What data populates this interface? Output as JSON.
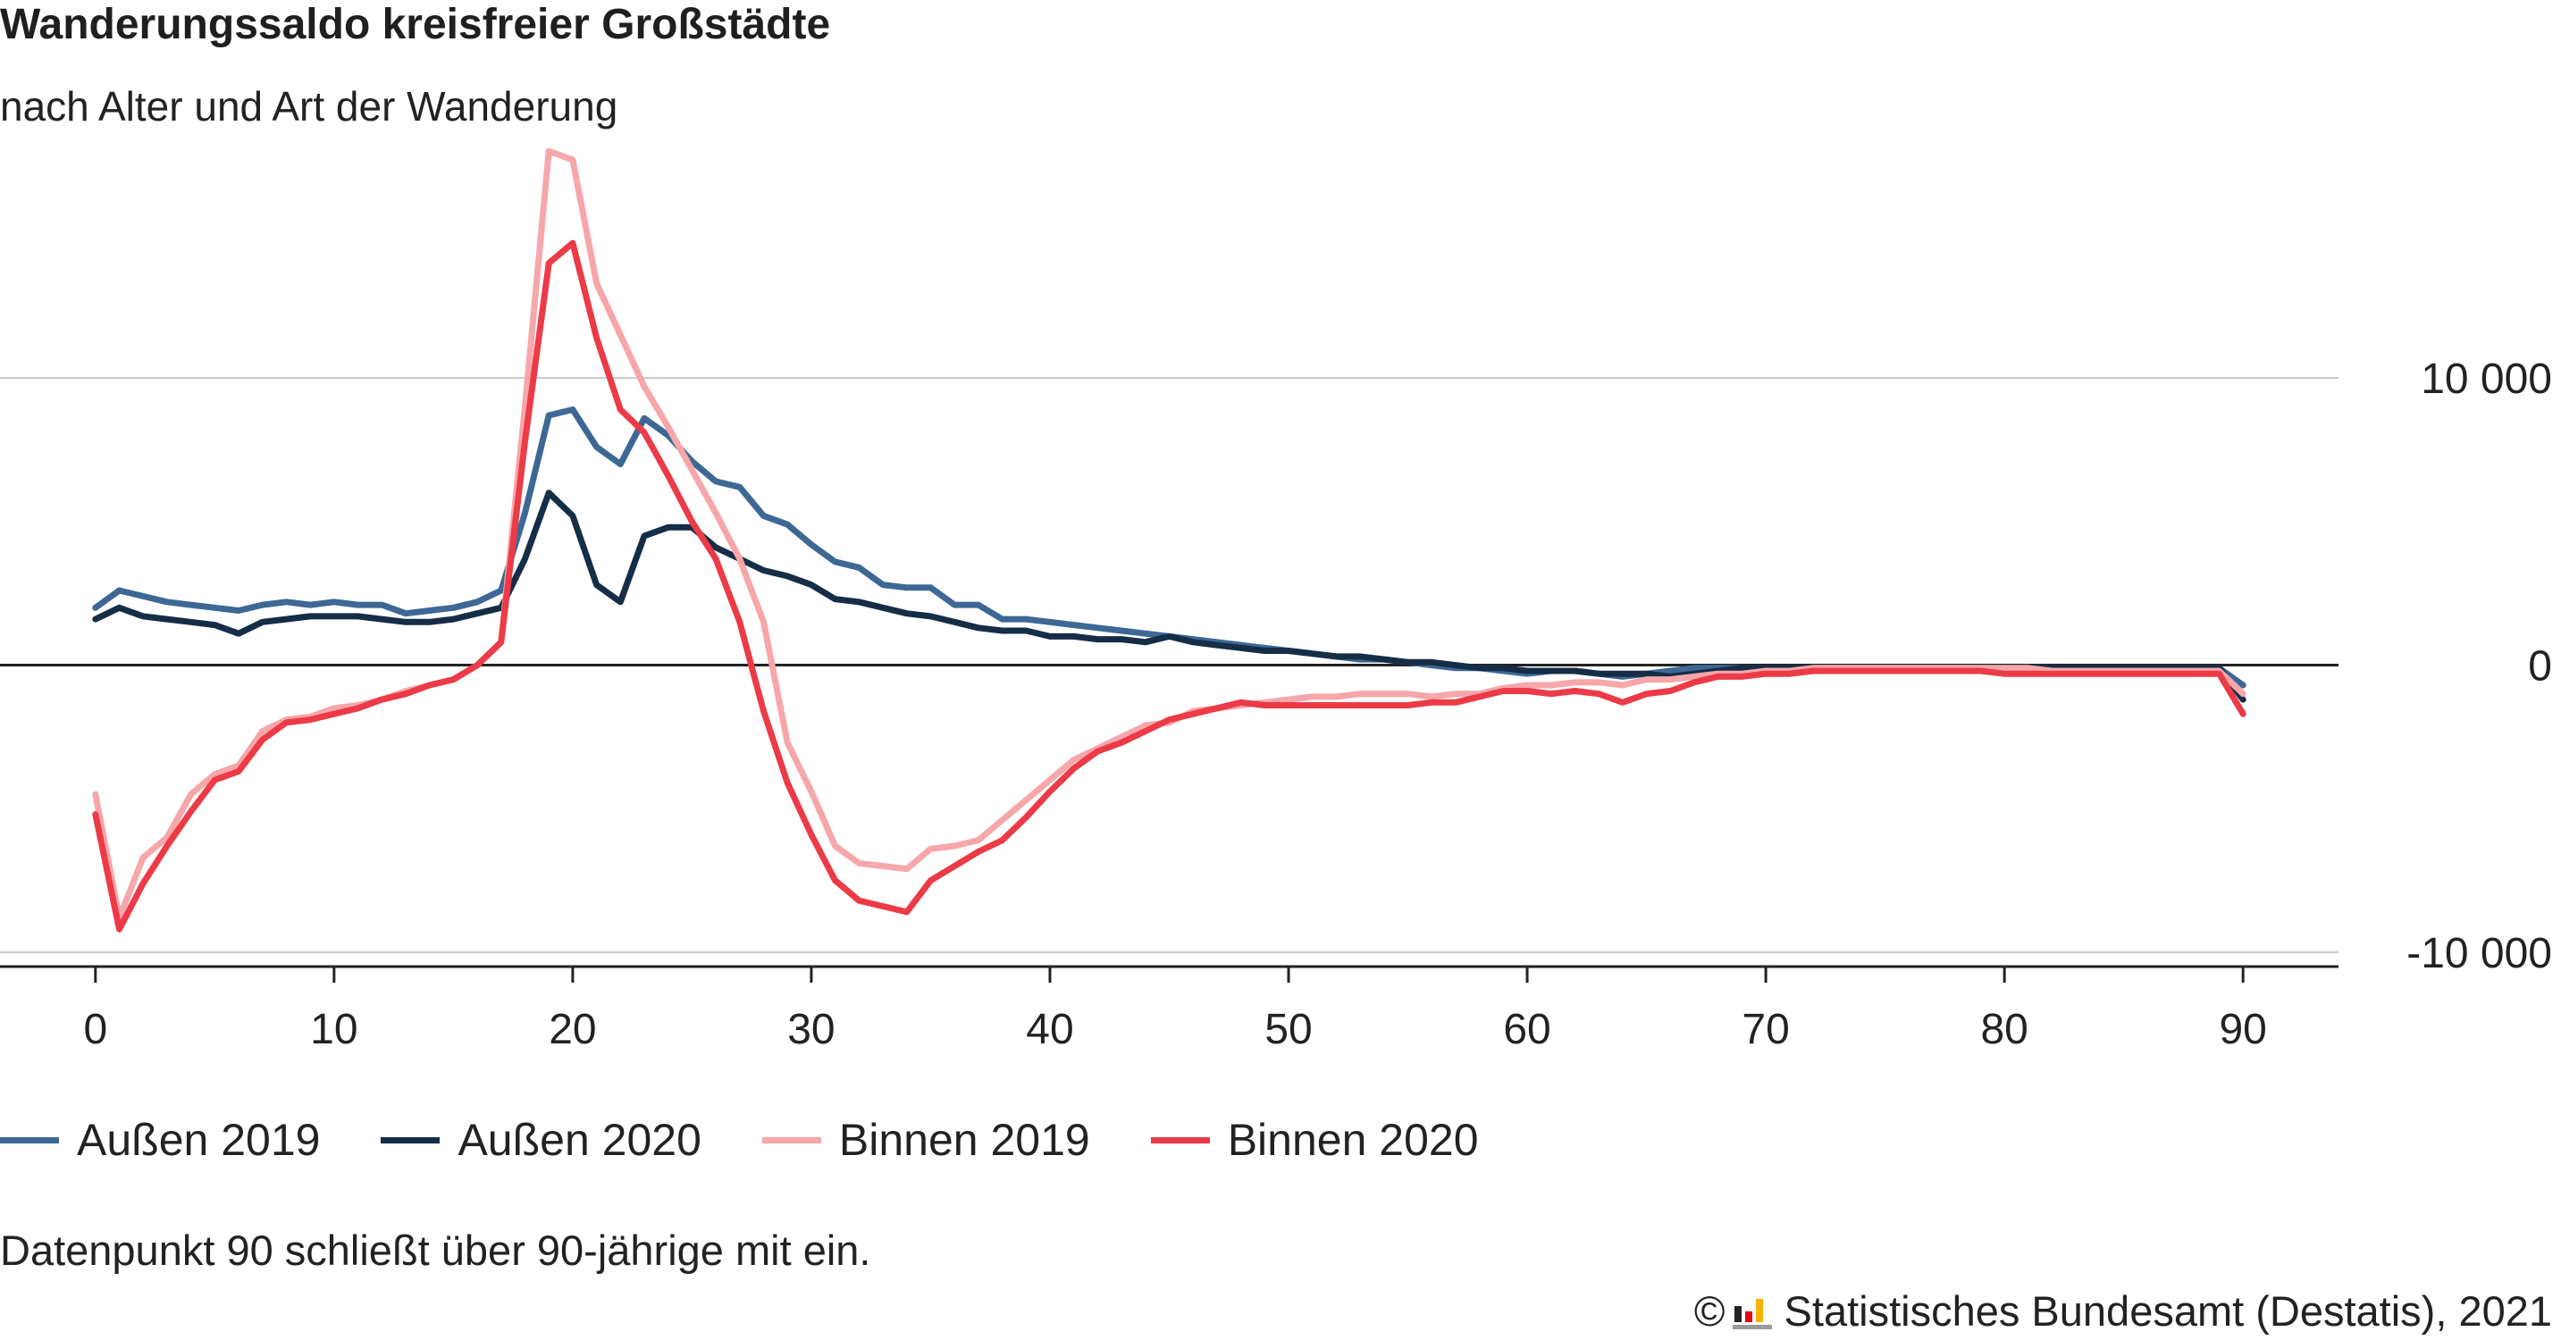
{
  "header": {
    "title": "Wanderungssaldo kreisfreier Großstädte",
    "subtitle": "nach Alter und Art der Wanderung"
  },
  "legend": {
    "items": [
      {
        "label": "Außen 2019",
        "color": "#3d6895"
      },
      {
        "label": "Außen 2020",
        "color": "#162d47"
      },
      {
        "label": "Binnen 2019",
        "color": "#f7a6a9"
      },
      {
        "label": "Binnen 2020",
        "color": "#ec3a47"
      }
    ]
  },
  "footnote": "Datenpunkt 90 schließt über 90-jährige mit ein.",
  "source": {
    "copyright": "©",
    "text": "Statistisches Bundesamt (Destatis), 2021",
    "logo_icon": "destatis-logo-icon"
  },
  "chart_data": {
    "type": "line",
    "x": [
      0,
      1,
      2,
      3,
      4,
      5,
      6,
      7,
      8,
      9,
      10,
      11,
      12,
      13,
      14,
      15,
      16,
      17,
      18,
      19,
      20,
      21,
      22,
      23,
      24,
      25,
      26,
      27,
      28,
      29,
      30,
      31,
      32,
      33,
      34,
      35,
      36,
      37,
      38,
      39,
      40,
      41,
      42,
      43,
      44,
      45,
      46,
      47,
      48,
      49,
      50,
      51,
      52,
      53,
      54,
      55,
      56,
      57,
      58,
      59,
      60,
      61,
      62,
      63,
      64,
      65,
      66,
      67,
      68,
      69,
      70,
      71,
      72,
      73,
      74,
      75,
      76,
      77,
      78,
      79,
      80,
      81,
      82,
      83,
      84,
      85,
      86,
      87,
      88,
      89,
      90
    ],
    "xlim": [
      -4,
      94
    ],
    "xticks": [
      "0",
      "10",
      "20",
      "30",
      "40",
      "50",
      "60",
      "70",
      "80",
      "90"
    ],
    "xtick_values": [
      0,
      10,
      20,
      30,
      40,
      50,
      60,
      70,
      80,
      90
    ],
    "ylim": [
      -10500,
      18500
    ],
    "yticks": [
      "10 000",
      "0",
      "-10 000"
    ],
    "ytick_values": [
      10000,
      0,
      -10000
    ],
    "grid": true,
    "legend_position": "bottom",
    "series": [
      {
        "name": "Außen 2019",
        "color": "#3d6895",
        "values": [
          2000,
          2600,
          2400,
          2200,
          2100,
          2000,
          1900,
          2100,
          2200,
          2100,
          2200,
          2100,
          2100,
          1800,
          1900,
          2000,
          2200,
          2600,
          5300,
          8700,
          8900,
          7600,
          7000,
          8600,
          8000,
          7100,
          6400,
          6200,
          5200,
          4900,
          4200,
          3600,
          3400,
          2800,
          2700,
          2700,
          2100,
          2100,
          1600,
          1600,
          1500,
          1400,
          1300,
          1200,
          1100,
          1000,
          900,
          800,
          700,
          600,
          500,
          400,
          300,
          200,
          200,
          100,
          0,
          -100,
          -100,
          -200,
          -300,
          -200,
          -200,
          -300,
          -400,
          -300,
          -200,
          -100,
          -100,
          -100,
          -100,
          -100,
          -100,
          -100,
          -100,
          -100,
          -100,
          -100,
          -100,
          -100,
          -100,
          -100,
          -100,
          -100,
          -100,
          -100,
          -100,
          -100,
          -100,
          -100,
          -700
        ]
      },
      {
        "name": "Außen 2020",
        "color": "#162d47",
        "values": [
          1600,
          2000,
          1700,
          1600,
          1500,
          1400,
          1100,
          1500,
          1600,
          1700,
          1700,
          1700,
          1600,
          1500,
          1500,
          1600,
          1800,
          2000,
          3700,
          6000,
          5200,
          2800,
          2200,
          4500,
          4800,
          4800,
          4100,
          3700,
          3300,
          3100,
          2800,
          2300,
          2200,
          2000,
          1800,
          1700,
          1500,
          1300,
          1200,
          1200,
          1000,
          1000,
          900,
          900,
          800,
          1000,
          800,
          700,
          600,
          500,
          500,
          400,
          300,
          300,
          200,
          100,
          100,
          0,
          -100,
          -100,
          -200,
          -200,
          -200,
          -300,
          -300,
          -300,
          -400,
          -300,
          -200,
          -100,
          -100,
          -100,
          -100,
          -100,
          -100,
          -100,
          -100,
          -100,
          -100,
          -100,
          -100,
          -100,
          -100,
          -100,
          -100,
          -100,
          -100,
          -100,
          -100,
          -100,
          -1200
        ]
      },
      {
        "name": "Binnen 2019",
        "color": "#f7a6a9",
        "values": [
          -4500,
          -8800,
          -6700,
          -6000,
          -4500,
          -3800,
          -3500,
          -2300,
          -1900,
          -1800,
          -1500,
          -1400,
          -1200,
          -900,
          -700,
          -500,
          0,
          800,
          9000,
          17900,
          17600,
          13300,
          11500,
          9700,
          8300,
          6800,
          5300,
          3700,
          1500,
          -2700,
          -4400,
          -6300,
          -6900,
          -7000,
          -7100,
          -6400,
          -6300,
          -6100,
          -5400,
          -4700,
          -4000,
          -3300,
          -2900,
          -2500,
          -2100,
          -2000,
          -1600,
          -1500,
          -1400,
          -1300,
          -1200,
          -1100,
          -1100,
          -1000,
          -1000,
          -1000,
          -1100,
          -1000,
          -1000,
          -800,
          -700,
          -700,
          -600,
          -600,
          -700,
          -500,
          -500,
          -400,
          -300,
          -300,
          -200,
          -200,
          -100,
          -100,
          -100,
          -100,
          -100,
          -100,
          -100,
          -100,
          -100,
          -100,
          -200,
          -200,
          -200,
          -200,
          -200,
          -200,
          -200,
          -200,
          -1000
        ]
      },
      {
        "name": "Binnen 2020",
        "color": "#ec3a47",
        "values": [
          -5200,
          -9200,
          -7600,
          -6300,
          -5100,
          -4000,
          -3700,
          -2600,
          -2000,
          -1900,
          -1700,
          -1500,
          -1200,
          -1000,
          -700,
          -500,
          0,
          800,
          7800,
          14000,
          14700,
          11400,
          8900,
          8100,
          6600,
          5000,
          3700,
          1500,
          -1600,
          -4100,
          -5900,
          -7500,
          -8200,
          -8400,
          -8600,
          -7500,
          -7000,
          -6500,
          -6100,
          -5300,
          -4400,
          -3600,
          -3000,
          -2700,
          -2300,
          -1900,
          -1700,
          -1500,
          -1300,
          -1400,
          -1400,
          -1400,
          -1400,
          -1400,
          -1400,
          -1400,
          -1300,
          -1300,
          -1100,
          -900,
          -900,
          -1000,
          -900,
          -1000,
          -1300,
          -1000,
          -900,
          -600,
          -400,
          -400,
          -300,
          -300,
          -200,
          -200,
          -200,
          -200,
          -200,
          -200,
          -200,
          -200,
          -300,
          -300,
          -300,
          -300,
          -300,
          -300,
          -300,
          -300,
          -300,
          -300,
          -1700
        ]
      }
    ]
  }
}
